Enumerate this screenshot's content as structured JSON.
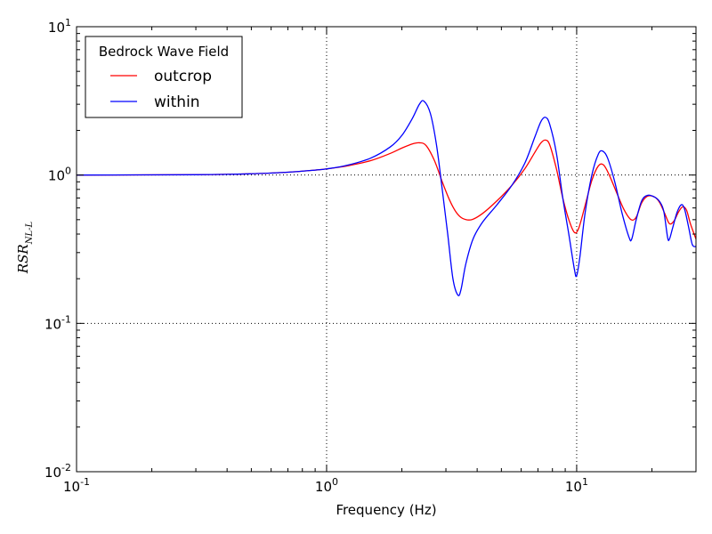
{
  "chart_data": {
    "type": "line",
    "title": "",
    "xlabel": "Frequency (Hz)",
    "ylabel_main": "RSR",
    "ylabel_sub": "NL-L",
    "x_scale": "log",
    "y_scale": "log",
    "xlim": [
      0.1,
      30
    ],
    "ylim": [
      0.01,
      10
    ],
    "grid": "dotted, at decades",
    "x_ticks": [
      {
        "value": 0.1,
        "base": "10",
        "exp": "-1"
      },
      {
        "value": 1,
        "base": "10",
        "exp": "0"
      },
      {
        "value": 10,
        "base": "10",
        "exp": "1"
      }
    ],
    "y_ticks": [
      {
        "value": 0.01,
        "base": "10",
        "exp": "-2"
      },
      {
        "value": 0.1,
        "base": "10",
        "exp": "-1"
      },
      {
        "value": 1,
        "base": "10",
        "exp": "0"
      },
      {
        "value": 10,
        "base": "10",
        "exp": "1"
      }
    ],
    "legend": {
      "title": "Bedrock Wave Field",
      "location": "upper-left"
    },
    "series": [
      {
        "name": "outcrop",
        "color": "#ff0000",
        "points": [
          [
            0.1,
            1.0
          ],
          [
            0.3,
            1.005
          ],
          [
            0.5,
            1.02
          ],
          [
            0.7,
            1.045
          ],
          [
            0.9,
            1.08
          ],
          [
            1.0,
            1.1
          ],
          [
            1.2,
            1.15
          ],
          [
            1.5,
            1.25
          ],
          [
            1.8,
            1.4
          ],
          [
            2.0,
            1.52
          ],
          [
            2.2,
            1.62
          ],
          [
            2.35,
            1.65
          ],
          [
            2.5,
            1.58
          ],
          [
            2.7,
            1.25
          ],
          [
            2.9,
            0.9
          ],
          [
            3.1,
            0.68
          ],
          [
            3.3,
            0.56
          ],
          [
            3.5,
            0.51
          ],
          [
            3.8,
            0.5
          ],
          [
            4.2,
            0.55
          ],
          [
            4.8,
            0.67
          ],
          [
            5.5,
            0.85
          ],
          [
            6.2,
            1.1
          ],
          [
            6.8,
            1.42
          ],
          [
            7.2,
            1.65
          ],
          [
            7.5,
            1.72
          ],
          [
            7.8,
            1.6
          ],
          [
            8.3,
            1.1
          ],
          [
            8.8,
            0.7
          ],
          [
            9.3,
            0.5
          ],
          [
            9.8,
            0.41
          ],
          [
            10.2,
            0.44
          ],
          [
            10.8,
            0.62
          ],
          [
            11.5,
            0.92
          ],
          [
            12.2,
            1.15
          ],
          [
            12.8,
            1.17
          ],
          [
            13.5,
            1.0
          ],
          [
            14.5,
            0.75
          ],
          [
            15.5,
            0.58
          ],
          [
            16.5,
            0.5
          ],
          [
            17.3,
            0.52
          ],
          [
            18.2,
            0.65
          ],
          [
            19.2,
            0.72
          ],
          [
            20.5,
            0.71
          ],
          [
            21.5,
            0.65
          ],
          [
            22.5,
            0.55
          ],
          [
            23.5,
            0.47
          ],
          [
            24.5,
            0.49
          ],
          [
            25.5,
            0.56
          ],
          [
            26.5,
            0.61
          ],
          [
            27.5,
            0.58
          ],
          [
            28.5,
            0.47
          ],
          [
            30,
            0.37
          ]
        ]
      },
      {
        "name": "within",
        "color": "#0000ff",
        "points": [
          [
            0.1,
            1.0
          ],
          [
            0.3,
            1.005
          ],
          [
            0.5,
            1.02
          ],
          [
            0.7,
            1.045
          ],
          [
            0.9,
            1.08
          ],
          [
            1.0,
            1.1
          ],
          [
            1.2,
            1.16
          ],
          [
            1.5,
            1.3
          ],
          [
            1.8,
            1.55
          ],
          [
            2.0,
            1.85
          ],
          [
            2.2,
            2.4
          ],
          [
            2.35,
            3.0
          ],
          [
            2.45,
            3.15
          ],
          [
            2.6,
            2.6
          ],
          [
            2.75,
            1.6
          ],
          [
            2.9,
            0.8
          ],
          [
            3.05,
            0.4
          ],
          [
            3.2,
            0.2
          ],
          [
            3.35,
            0.155
          ],
          [
            3.45,
            0.17
          ],
          [
            3.6,
            0.25
          ],
          [
            3.85,
            0.37
          ],
          [
            4.2,
            0.48
          ],
          [
            4.8,
            0.63
          ],
          [
            5.5,
            0.85
          ],
          [
            6.2,
            1.2
          ],
          [
            6.8,
            1.8
          ],
          [
            7.2,
            2.3
          ],
          [
            7.5,
            2.45
          ],
          [
            7.8,
            2.2
          ],
          [
            8.3,
            1.4
          ],
          [
            8.8,
            0.7
          ],
          [
            9.3,
            0.4
          ],
          [
            9.8,
            0.23
          ],
          [
            10.0,
            0.21
          ],
          [
            10.3,
            0.28
          ],
          [
            10.8,
            0.55
          ],
          [
            11.5,
            1.0
          ],
          [
            12.2,
            1.38
          ],
          [
            12.7,
            1.45
          ],
          [
            13.3,
            1.3
          ],
          [
            14.2,
            0.9
          ],
          [
            15.2,
            0.55
          ],
          [
            16.2,
            0.38
          ],
          [
            16.6,
            0.37
          ],
          [
            17.3,
            0.5
          ],
          [
            18.2,
            0.67
          ],
          [
            19.2,
            0.73
          ],
          [
            20.5,
            0.71
          ],
          [
            21.5,
            0.66
          ],
          [
            22.3,
            0.57
          ],
          [
            23.1,
            0.38
          ],
          [
            23.5,
            0.37
          ],
          [
            24.2,
            0.44
          ],
          [
            25.2,
            0.56
          ],
          [
            26.2,
            0.63
          ],
          [
            27.0,
            0.59
          ],
          [
            28.0,
            0.45
          ],
          [
            29.0,
            0.34
          ],
          [
            30,
            0.33
          ]
        ]
      }
    ]
  }
}
